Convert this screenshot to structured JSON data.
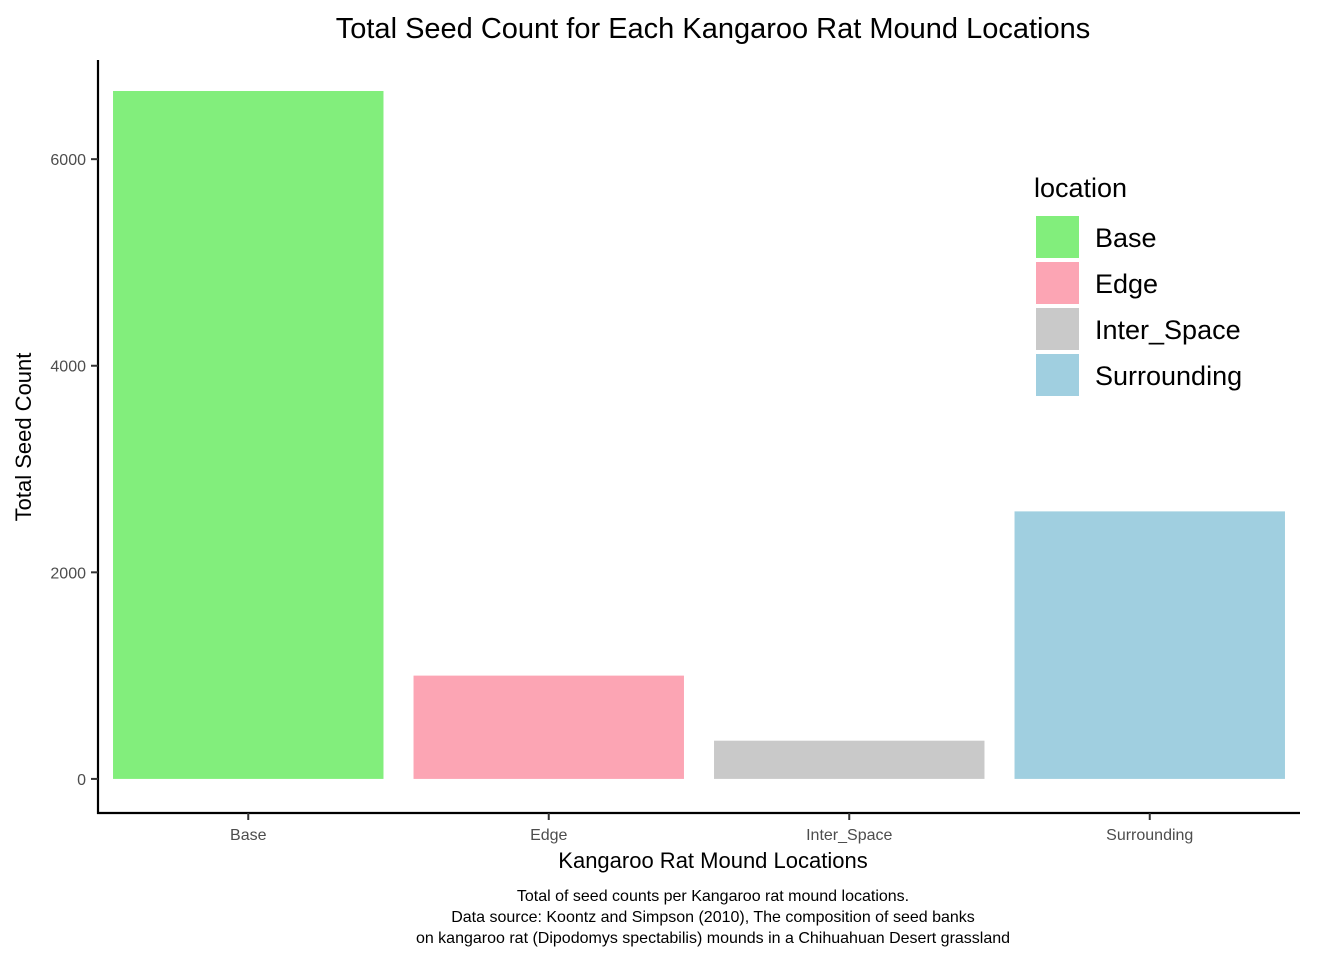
{
  "chart_data": {
    "type": "bar",
    "title": "Total Seed Count for Each Kangaroo Rat Mound Locations",
    "xlabel": "Kangaroo Rat Mound Locations",
    "ylabel": "Total Seed Count",
    "categories": [
      "Base",
      "Edge",
      "Inter_Space",
      "Surrounding"
    ],
    "values": [
      6660,
      1000,
      370,
      2590
    ],
    "colors": [
      "#82ee7c",
      "#fca5b4",
      "#c9c9c9",
      "#a0cfe0"
    ],
    "ylim": [
      -330,
      6960
    ],
    "yticks": [
      0,
      2000,
      4000,
      6000
    ],
    "grid": false,
    "legend": {
      "title": "location",
      "position": "right",
      "entries": [
        "Base",
        "Edge",
        "Inter_Space",
        "Surrounding"
      ]
    },
    "caption": [
      "Total of seed counts per Kangaroo rat mound locations.",
      "Data source: Koontz and Simpson (2010), The composition of seed banks",
      "on kangaroo rat (Dipodomys spectabilis) mounds in a Chihuahuan Desert grassland"
    ]
  }
}
